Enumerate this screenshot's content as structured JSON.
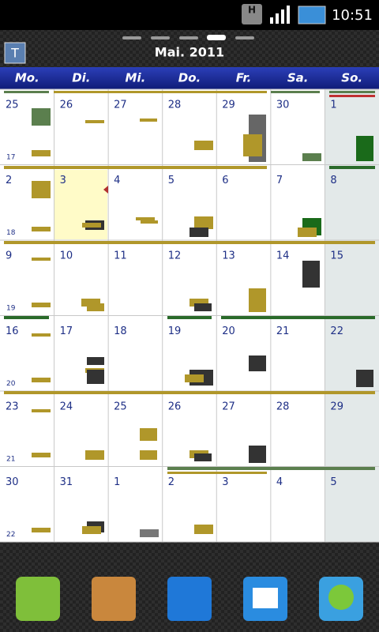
{
  "status_bar": {
    "network": "H",
    "time": "10:51"
  },
  "header": {
    "icon": "T",
    "title": "Mai. 2011"
  },
  "weekdays": [
    "Mo.",
    "Di.",
    "Mi.",
    "Do.",
    "Fr.",
    "Sa.",
    "So."
  ],
  "weeks": [
    {
      "number": "17",
      "days": [
        "25",
        "26",
        "27",
        "28",
        "29",
        "30",
        "1"
      ]
    },
    {
      "number": "18",
      "days": [
        "2",
        "3",
        "4",
        "5",
        "6",
        "7",
        "8"
      ]
    },
    {
      "number": "19",
      "days": [
        "9",
        "10",
        "11",
        "12",
        "13",
        "14",
        "15"
      ]
    },
    {
      "number": "20",
      "days": [
        "16",
        "17",
        "18",
        "19",
        "20",
        "21",
        "22"
      ]
    },
    {
      "number": "21",
      "days": [
        "23",
        "24",
        "25",
        "26",
        "27",
        "28",
        "29"
      ]
    },
    {
      "number": "22",
      "days": [
        "30",
        "31",
        "1",
        "2",
        "3",
        "4",
        "5"
      ]
    }
  ]
}
